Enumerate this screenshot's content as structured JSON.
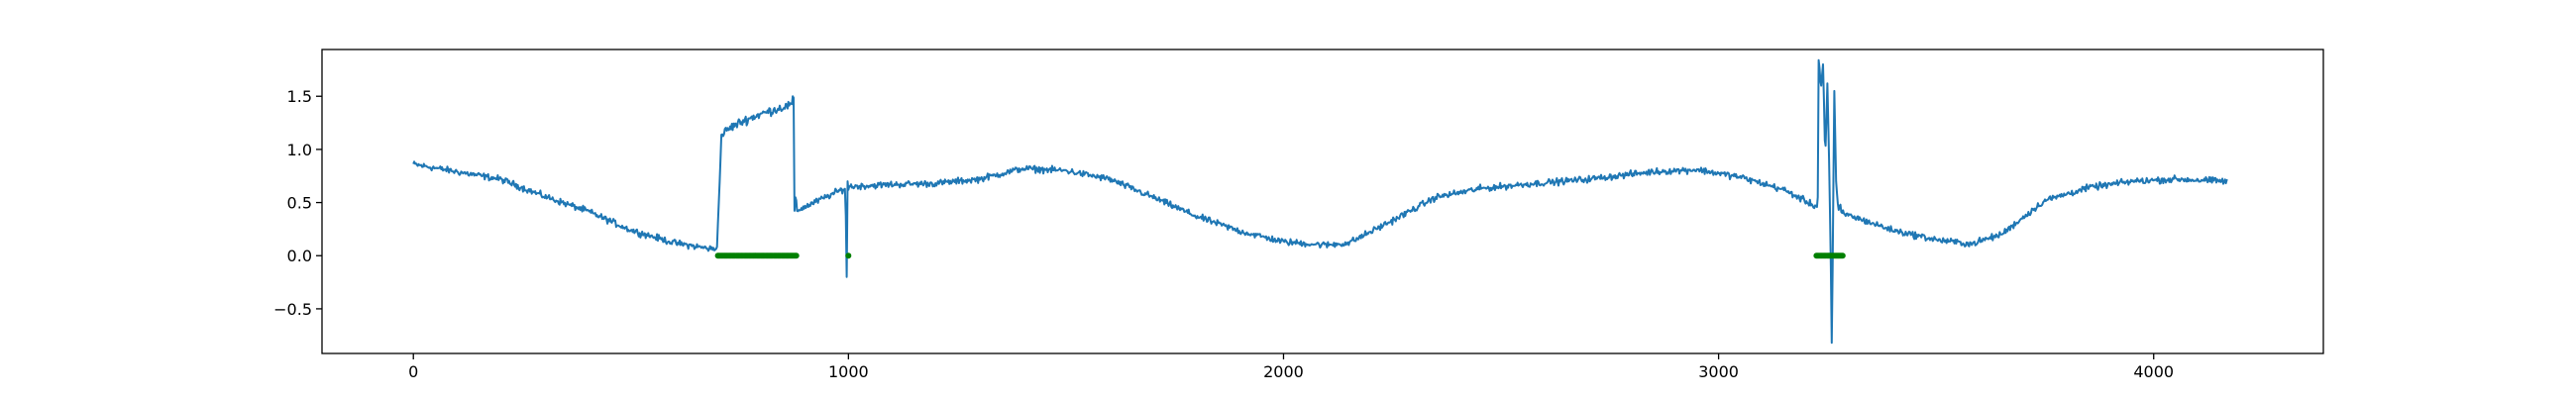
{
  "chart_data": {
    "type": "line",
    "title": "",
    "xlabel": "",
    "ylabel": "",
    "xlim": [
      -210,
      4390
    ],
    "ylim": [
      -0.92,
      1.94
    ],
    "grid": false,
    "legend": "none",
    "x_ticks": [
      {
        "value": 0,
        "label": "0"
      },
      {
        "value": 1000,
        "label": "1000"
      },
      {
        "value": 2000,
        "label": "2000"
      },
      {
        "value": 3000,
        "label": "3000"
      },
      {
        "value": 4000,
        "label": "4000"
      }
    ],
    "y_ticks": [
      {
        "value": -0.5,
        "label": "−0.5"
      },
      {
        "value": 0.0,
        "label": "0.0"
      },
      {
        "value": 0.5,
        "label": "0.5"
      },
      {
        "value": 1.0,
        "label": "1.0"
      },
      {
        "value": 1.5,
        "label": "1.5"
      }
    ],
    "series": [
      {
        "kind": "line",
        "color": "#1f77b4",
        "x_start": 0,
        "x_end": 4170,
        "noise_amplitude": 0.045,
        "baseline_points": [
          [
            0,
            0.86
          ],
          [
            100,
            0.79
          ],
          [
            200,
            0.72
          ],
          [
            300,
            0.56
          ],
          [
            400,
            0.42
          ],
          [
            500,
            0.24
          ],
          [
            600,
            0.12
          ],
          [
            690,
            0.06
          ],
          [
            1000,
            0.65
          ],
          [
            1100,
            0.67
          ],
          [
            1200,
            0.68
          ],
          [
            1300,
            0.72
          ],
          [
            1400,
            0.82
          ],
          [
            1500,
            0.8
          ],
          [
            1600,
            0.72
          ],
          [
            1700,
            0.55
          ],
          [
            1800,
            0.37
          ],
          [
            1900,
            0.23
          ],
          [
            2000,
            0.13
          ],
          [
            2100,
            0.1
          ],
          [
            2150,
            0.12
          ],
          [
            2250,
            0.33
          ],
          [
            2350,
            0.55
          ],
          [
            2450,
            0.63
          ],
          [
            2550,
            0.67
          ],
          [
            2700,
            0.72
          ],
          [
            2850,
            0.79
          ],
          [
            2950,
            0.81
          ],
          [
            3050,
            0.74
          ],
          [
            3150,
            0.62
          ],
          [
            3220,
            0.47
          ],
          [
            3300,
            0.38
          ],
          [
            3400,
            0.24
          ],
          [
            3500,
            0.15
          ],
          [
            3580,
            0.11
          ],
          [
            3650,
            0.2
          ],
          [
            3750,
            0.52
          ],
          [
            3850,
            0.64
          ],
          [
            3950,
            0.7
          ],
          [
            4050,
            0.72
          ],
          [
            4170,
            0.7
          ]
        ],
        "anomaly_segments": [
          {
            "x_start": 700,
            "x_end": 870,
            "y_start": 1.05,
            "y_end": 1.42
          }
        ],
        "anomaly_points": [
          [
            872,
            1.5
          ],
          [
            875,
            0.52
          ],
          [
            878,
            0.55
          ],
          [
            880,
            0.52
          ],
          [
            993,
            0.65
          ],
          [
            995,
            0.1
          ],
          [
            996,
            -0.2
          ],
          [
            997,
            0.05
          ],
          [
            998,
            0.7
          ],
          [
            1000,
            0.62
          ],
          [
            3228,
            0.55
          ],
          [
            3230,
            1.84
          ],
          [
            3236,
            1.6
          ],
          [
            3240,
            1.8
          ],
          [
            3245,
            0.9
          ],
          [
            3250,
            1.62
          ],
          [
            3255,
            0.7
          ],
          [
            3258,
            -0.1
          ],
          [
            3260,
            -0.82
          ],
          [
            3263,
            0.2
          ],
          [
            3266,
            1.55
          ],
          [
            3270,
            0.7
          ],
          [
            3275,
            0.4
          ],
          [
            3280,
            0.48
          ]
        ]
      },
      {
        "kind": "markers",
        "color": "#008000",
        "y": 0.0,
        "ranges": [
          [
            700,
            880
          ],
          [
            1000,
            1000
          ],
          [
            3225,
            3285
          ]
        ]
      }
    ]
  }
}
